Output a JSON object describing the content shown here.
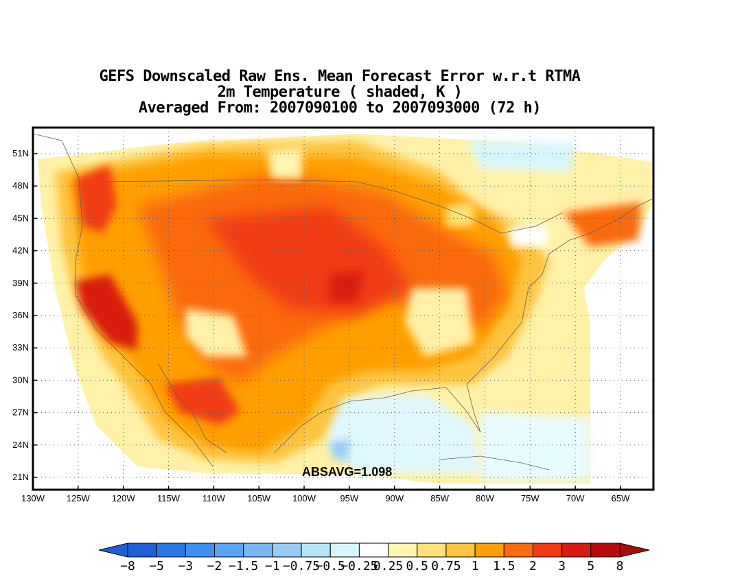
{
  "title": {
    "line1": "GEFS Downscaled Raw Ens. Mean Forecast Error w.r.t RTMA",
    "line2": "2m Temperature ( shaded, K )",
    "line3": "Averaged From: 2007090100 to 2007093000 (72 h)"
  },
  "annotation": "ABSAVG=1.098",
  "map": {
    "lat_labels": [
      "51N",
      "48N",
      "45N",
      "42N",
      "39N",
      "36N",
      "33N",
      "30N",
      "27N",
      "24N",
      "21N"
    ],
    "lon_labels": [
      "130W",
      "125W",
      "120W",
      "115W",
      "110W",
      "105W",
      "100W",
      "95W",
      "90W",
      "85W",
      "80W",
      "75W",
      "70W",
      "65W"
    ],
    "lat_range": [
      20,
      53
    ],
    "lon_range": [
      -130,
      -62
    ],
    "grid": "dotted"
  },
  "colorbar": {
    "labels": [
      "−8",
      "−5",
      "−3",
      "−2",
      "−1.5",
      "−1",
      "−0.75",
      "−0.5",
      "−0.25",
      "0.25",
      "0.5",
      "0.75",
      "1",
      "1.5",
      "2",
      "3",
      "5",
      "8"
    ],
    "colors": [
      "#1e5fd8",
      "#2a78e6",
      "#3d8ff0",
      "#5aa5f2",
      "#77b8f4",
      "#96cdf8",
      "#b4e6fb",
      "#d6f6fd",
      "#ffffff",
      "#fff6b0",
      "#ffe27a",
      "#ffc440",
      "#ffa000",
      "#fb6a0e",
      "#f03c12",
      "#d81a10",
      "#b80a0a"
    ],
    "low_end": "#1e5fd8",
    "high_end": "#a60d0d"
  }
}
